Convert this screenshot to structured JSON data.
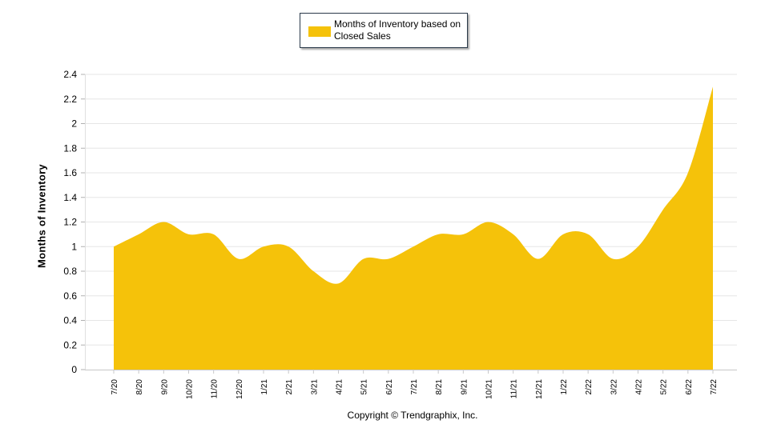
{
  "chart_data": {
    "type": "area",
    "title": "",
    "xlabel": "",
    "ylabel": "Months of Inventory",
    "ylim": [
      0,
      2.4
    ],
    "yticks": [
      "0",
      "0.2",
      "0.4",
      "0.6",
      "0.8",
      "1",
      "1.2",
      "1.4",
      "1.6",
      "1.8",
      "2",
      "2.2",
      "2.4"
    ],
    "categories": [
      "7/20",
      "8/20",
      "9/20",
      "10/20",
      "11/20",
      "12/20",
      "1/21",
      "2/21",
      "3/21",
      "4/21",
      "5/21",
      "6/21",
      "7/21",
      "8/21",
      "9/21",
      "10/21",
      "11/21",
      "12/21",
      "1/22",
      "2/22",
      "3/22",
      "4/22",
      "5/22",
      "6/22",
      "7/22"
    ],
    "series": [
      {
        "name": "Months of Inventory based on Closed Sales",
        "color": "#f5c20a",
        "values": [
          1.0,
          1.1,
          1.2,
          1.1,
          1.1,
          0.9,
          1.0,
          1.0,
          0.8,
          0.7,
          0.9,
          0.9,
          1.0,
          1.1,
          1.1,
          1.2,
          1.1,
          0.9,
          1.1,
          1.1,
          0.9,
          1.0,
          1.3,
          1.6,
          2.3
        ]
      }
    ],
    "grid": true,
    "legend": "top-center"
  },
  "legend": {
    "label": "Months of Inventory based on Closed Sales"
  },
  "footer": {
    "copyright": "Copyright © Trendgraphix, Inc."
  }
}
